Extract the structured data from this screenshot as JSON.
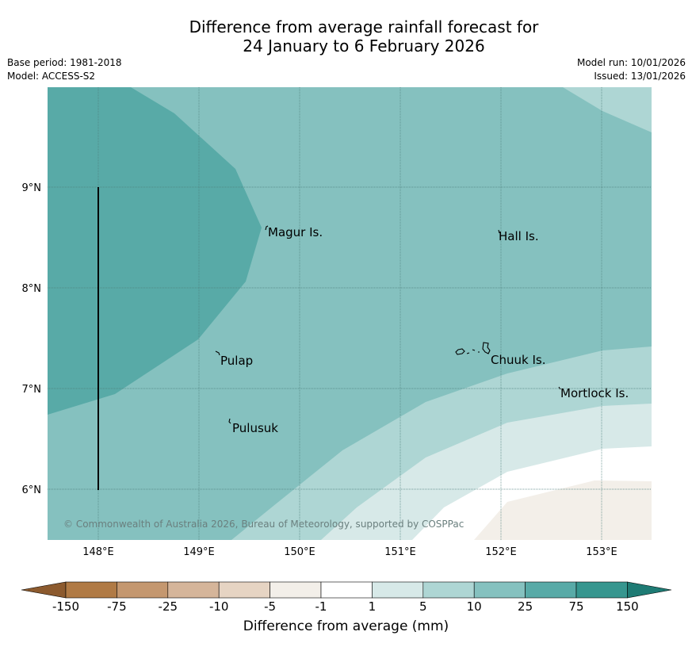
{
  "title": {
    "line1": "Difference from average rainfall forecast for",
    "line2": "24 January to 6 February 2026"
  },
  "meta": {
    "base_period": "Base period: 1981-2018",
    "model": "Model: ACCESS-S2",
    "model_run": "Model run: 10/01/2026",
    "issued": "Issued: 13/01/2026"
  },
  "map": {
    "copyright": "© Commonwealth of Australia 2026, Bureau of Meteorology, supported by COSPPac",
    "lon_labels": [
      "148°E",
      "149°E",
      "150°E",
      "151°E",
      "152°E",
      "153°E"
    ],
    "lat_labels": [
      "9°N",
      "8°N",
      "7°N",
      "6°N"
    ],
    "islands": [
      {
        "name": "Magur Is."
      },
      {
        "name": "Hall Is."
      },
      {
        "name": "Pulap"
      },
      {
        "name": "Chuuk Is."
      },
      {
        "name": "Mortlock Is."
      },
      {
        "name": "Pulusuk"
      }
    ]
  },
  "colorbar": {
    "label": "Difference from average (mm)",
    "ticks": [
      "-150",
      "-75",
      "-25",
      "-10",
      "-5",
      "-1",
      "1",
      "5",
      "10",
      "25",
      "75",
      "150"
    ],
    "colors": {
      "below_-150": "#8c5a2e",
      "-150_-75": "#b07a45",
      "-75_-25": "#c4976f",
      "-25_-10": "#d5b59a",
      "-10_-5": "#e6d4c3",
      "-5_-1": "#f3efe9",
      "-1_1": "#ffffff",
      "1_5": "#d7e9e8",
      "5_10": "#aed6d4",
      "10_25": "#85c1bf",
      "25_75": "#58aaa7",
      "75_150": "#36968f",
      "above_150": "#1e7b74"
    }
  }
}
